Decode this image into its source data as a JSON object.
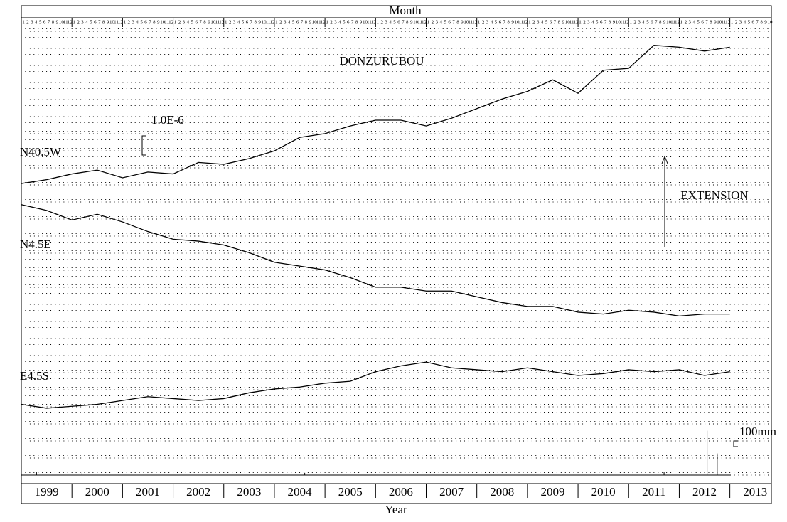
{
  "chart_data": {
    "type": "line",
    "title": "DONZURUBOU",
    "x_axis_top_label": "Month",
    "x_axis_label": "Year",
    "annotation": "EXTENSION",
    "months": [
      "1",
      "2",
      "3",
      "4",
      "5",
      "6",
      "7",
      "8",
      "9",
      "10",
      "11",
      "12"
    ],
    "xlim": [
      1999,
      2013.82
    ],
    "xticks": [
      {
        "value": 1999,
        "label": "1999"
      },
      {
        "value": 2000,
        "label": "2000"
      },
      {
        "value": 2001,
        "label": "2001"
      },
      {
        "value": 2002,
        "label": "2002"
      },
      {
        "value": 2003,
        "label": "2003"
      },
      {
        "value": 2004,
        "label": "2004"
      },
      {
        "value": 2005,
        "label": "2005"
      },
      {
        "value": 2006,
        "label": "2006"
      },
      {
        "value": 2007,
        "label": "2007"
      },
      {
        "value": 2008,
        "label": "2008"
      },
      {
        "value": 2009,
        "label": "2009"
      },
      {
        "value": 2010,
        "label": "2010"
      },
      {
        "value": 2011,
        "label": "2011"
      },
      {
        "value": 2012,
        "label": "2012"
      },
      {
        "value": 2013,
        "label": "2013"
      }
    ],
    "ylim": [
      0,
      25.3
    ],
    "strain_scale": {
      "value": 1,
      "label": "1.0E-6"
    },
    "x": [
      1999.0,
      1999.5,
      2000.0,
      2000.5,
      2001.0,
      2001.5,
      2002.0,
      2002.5,
      2003.0,
      2003.5,
      2004.0,
      2004.5,
      2005.0,
      2005.5,
      2006.0,
      2006.5,
      2007.0,
      2007.5,
      2008.0,
      2008.5,
      2009.0,
      2009.5,
      2010.0,
      2010.5,
      2011.0,
      2011.5,
      2012.0,
      2012.5,
      2013.0
    ],
    "series": [
      {
        "name": "N40.5W",
        "color": "#000000",
        "values": [
          16.0,
          16.2,
          16.5,
          16.7,
          16.3,
          16.6,
          16.5,
          17.1,
          17.0,
          17.3,
          17.7,
          18.4,
          18.6,
          19.0,
          19.3,
          19.3,
          19.0,
          19.4,
          19.9,
          20.4,
          20.8,
          21.4,
          20.7,
          21.9,
          22.0,
          23.2,
          23.1,
          22.9,
          23.1
        ]
      },
      {
        "name": "N4.5E",
        "color": "#000000",
        "values": [
          14.9,
          14.6,
          14.1,
          14.4,
          14.0,
          13.5,
          13.1,
          13.0,
          12.8,
          12.4,
          11.9,
          11.7,
          11.5,
          11.1,
          10.6,
          10.6,
          10.4,
          10.4,
          10.1,
          9.8,
          9.6,
          9.6,
          9.3,
          9.2,
          9.4,
          9.3,
          9.1,
          9.2,
          9.2
        ]
      },
      {
        "name": "E4.5S",
        "color": "#000000",
        "values": [
          4.5,
          4.3,
          4.4,
          4.5,
          4.7,
          4.9,
          4.8,
          4.7,
          4.8,
          5.1,
          5.3,
          5.4,
          5.6,
          5.7,
          6.2,
          6.5,
          6.7,
          6.4,
          6.3,
          6.2,
          6.4,
          6.2,
          6.0,
          6.1,
          6.3,
          6.2,
          6.3,
          6.0,
          6.2
        ]
      }
    ],
    "rainfall": {
      "x": [
        1999.3,
        2000.2,
        2004.6,
        2011.7,
        2012.55,
        2012.75
      ],
      "values": [
        60,
        50,
        40,
        50,
        780,
        380
      ],
      "ylim": [
        0,
        1000
      ],
      "scale": {
        "value": 100,
        "label": "100mm"
      }
    }
  }
}
